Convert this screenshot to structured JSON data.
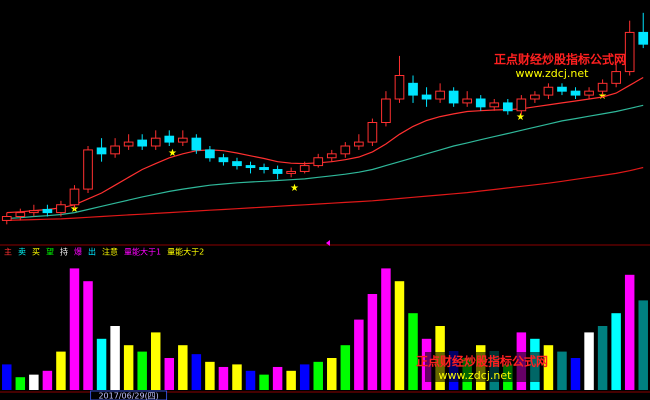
{
  "chart_data": [
    {
      "type": "candlestick",
      "ylim": [
        9,
        15
      ],
      "up_color": "#ff3030",
      "down_color": "#00e5ff",
      "open": [
        9.5,
        9.6,
        9.7,
        9.78,
        9.7,
        9.9,
        10.3,
        11.35,
        11.2,
        11.4,
        11.55,
        11.4,
        11.65,
        11.5,
        11.6,
        11.3,
        11.1,
        11.0,
        10.9,
        10.85,
        10.8,
        10.7,
        10.75,
        10.9,
        11.1,
        11.2,
        11.4,
        11.5,
        12.0,
        12.6,
        13.0,
        12.7,
        12.6,
        12.8,
        12.5,
        12.6,
        12.4,
        12.5,
        12.3,
        12.6,
        12.7,
        12.9,
        12.8,
        12.7,
        12.8,
        13.0,
        13.3,
        14.3
      ],
      "high": [
        9.7,
        9.8,
        9.9,
        9.9,
        10.0,
        10.4,
        11.4,
        11.6,
        11.6,
        11.7,
        11.7,
        11.8,
        11.8,
        11.8,
        11.7,
        11.4,
        11.2,
        11.1,
        11.0,
        10.95,
        10.9,
        10.85,
        11.0,
        11.2,
        11.3,
        11.5,
        11.7,
        12.1,
        12.8,
        13.7,
        13.2,
        12.9,
        13.0,
        12.9,
        12.8,
        12.7,
        12.6,
        12.6,
        12.7,
        12.8,
        13.0,
        13.0,
        12.9,
        12.9,
        13.1,
        13.5,
        14.6,
        14.8
      ],
      "low": [
        9.4,
        9.5,
        9.6,
        9.6,
        9.6,
        9.8,
        10.2,
        11.0,
        11.1,
        11.3,
        11.3,
        11.3,
        11.4,
        11.4,
        11.2,
        11.0,
        10.9,
        10.8,
        10.7,
        10.7,
        10.55,
        10.6,
        10.7,
        10.85,
        11.0,
        11.1,
        11.3,
        11.4,
        11.9,
        12.5,
        12.5,
        12.4,
        12.5,
        12.4,
        12.4,
        12.3,
        12.3,
        12.2,
        12.2,
        12.5,
        12.6,
        12.7,
        12.6,
        12.6,
        12.7,
        12.9,
        13.2,
        13.9
      ],
      "close": [
        9.6,
        9.7,
        9.75,
        9.7,
        9.9,
        10.3,
        11.3,
        11.2,
        11.4,
        11.5,
        11.4,
        11.6,
        11.5,
        11.6,
        11.3,
        11.1,
        11.0,
        10.9,
        10.85,
        10.8,
        10.7,
        10.75,
        10.9,
        11.1,
        11.2,
        11.4,
        11.5,
        12.0,
        12.6,
        13.2,
        12.7,
        12.6,
        12.8,
        12.5,
        12.6,
        12.4,
        12.5,
        12.3,
        12.6,
        12.7,
        12.9,
        12.8,
        12.7,
        12.8,
        13.0,
        13.3,
        14.3,
        14.0
      ],
      "series": [
        {
          "color": "#ff3030",
          "values": [
            9.7,
            9.72,
            9.75,
            9.78,
            9.82,
            9.9,
            10.05,
            10.2,
            10.4,
            10.6,
            10.8,
            10.95,
            11.1,
            11.2,
            11.28,
            11.3,
            11.28,
            11.22,
            11.15,
            11.08,
            11.0,
            10.96,
            10.95,
            10.97,
            11.0,
            11.05,
            11.12,
            11.25,
            11.45,
            11.7,
            11.9,
            12.05,
            12.15,
            12.22,
            12.28,
            12.3,
            12.32,
            12.33,
            12.35,
            12.4,
            12.45,
            12.5,
            12.55,
            12.6,
            12.65,
            12.75,
            12.95,
            13.15
          ]
        },
        {
          "color": "#2fb89a",
          "values": [
            9.55,
            9.57,
            9.6,
            9.62,
            9.65,
            9.7,
            9.78,
            9.86,
            9.94,
            10.02,
            10.1,
            10.17,
            10.24,
            10.3,
            10.35,
            10.4,
            10.43,
            10.46,
            10.48,
            10.5,
            10.52,
            10.54,
            10.56,
            10.6,
            10.64,
            10.68,
            10.73,
            10.8,
            10.9,
            11.0,
            11.1,
            11.2,
            11.3,
            11.4,
            11.48,
            11.56,
            11.64,
            11.72,
            11.8,
            11.88,
            11.96,
            12.04,
            12.1,
            12.16,
            12.22,
            12.28,
            12.36,
            12.44
          ]
        },
        {
          "color": "#e01818",
          "values": [
            9.5,
            9.51,
            9.52,
            9.53,
            9.54,
            9.56,
            9.58,
            9.6,
            9.62,
            9.64,
            9.66,
            9.68,
            9.7,
            9.72,
            9.74,
            9.76,
            9.78,
            9.8,
            9.82,
            9.84,
            9.86,
            9.88,
            9.9,
            9.92,
            9.94,
            9.96,
            9.98,
            10.0,
            10.03,
            10.06,
            10.09,
            10.12,
            10.15,
            10.18,
            10.21,
            10.25,
            10.29,
            10.33,
            10.37,
            10.41,
            10.45,
            10.5,
            10.55,
            10.6,
            10.65,
            10.7,
            10.77,
            10.85
          ]
        }
      ],
      "watermarks": [
        "正点财经炒股指标公式网",
        "www.zdcj.net"
      ]
    },
    {
      "type": "bar",
      "ylim": [
        0,
        100
      ],
      "categories": [
        null,
        null,
        null,
        null,
        null,
        null,
        null,
        null,
        null,
        "2017/06/29(四)",
        null,
        null,
        null,
        null,
        null,
        null,
        null,
        null,
        null,
        null,
        null,
        null,
        null,
        null,
        null,
        null,
        null,
        null,
        null,
        null,
        null,
        null,
        null,
        null,
        null,
        null,
        null,
        null,
        null,
        null,
        null,
        null,
        null,
        null,
        null,
        null,
        null,
        null
      ],
      "values": [
        20,
        10,
        12,
        15,
        30,
        95,
        85,
        40,
        50,
        35,
        30,
        45,
        25,
        35,
        28,
        22,
        18,
        20,
        15,
        12,
        18,
        15,
        20,
        22,
        25,
        35,
        55,
        75,
        95,
        85,
        60,
        40,
        50,
        30,
        25,
        35,
        30,
        20,
        45,
        40,
        35,
        30,
        25,
        45,
        50,
        60,
        90,
        70
      ],
      "colors": [
        "#0000ff",
        "#00ff00",
        "#ffffff",
        "#ff00ff",
        "#ffff00",
        "#ff00ff",
        "#ff00ff",
        "#00ffff",
        "#ffffff",
        "#ffff00",
        "#00ff00",
        "#ffff00",
        "#ff00ff",
        "#ffff00",
        "#0000ff",
        "#ffff00",
        "#ff00ff",
        "#ffff00",
        "#0000ff",
        "#00ff00",
        "#ff00ff",
        "#ffff00",
        "#0000ff",
        "#00ff00",
        "#ffff00",
        "#00ff00",
        "#ff00ff",
        "#ff00ff",
        "#ff00ff",
        "#ffff00",
        "#00ff00",
        "#ff00ff",
        "#ffff00",
        "#0000ff",
        "#00ff00",
        "#ffff00",
        "#008080",
        "#00ff00",
        "#ff00ff",
        "#00ffff",
        "#ffff00",
        "#008080",
        "#0000ff",
        "#ffffff",
        "#008080",
        "#00ffff",
        "#ff00ff",
        "#008080"
      ],
      "indicator_labels": [
        "主",
        "卖",
        "买",
        "望",
        "持",
        "爆",
        "出",
        "注意",
        "量能大于1",
        "量能大于2"
      ],
      "indicator_colors": [
        "#ff3030",
        "#00ffff",
        "#ffff00",
        "#00ff00",
        "#ffffff",
        "#ff00ff",
        "#00e5ff",
        "#ffff00",
        "#ff00ff",
        "#ffff00"
      ],
      "watermarks": [
        "正点财经炒股指标公式网",
        "www.zdcj.net"
      ]
    }
  ]
}
